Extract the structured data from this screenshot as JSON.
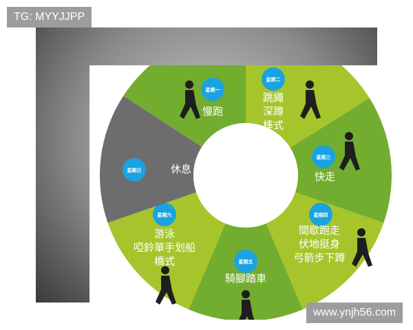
{
  "watermark_top": "TG: MYYJJPP",
  "watermark_bottom": "www.ynjh56.com",
  "colors": {
    "dark_green": "#73ad2f",
    "light_green": "#a6c52c",
    "rest_grey": "#6d6d6f",
    "badge_blue": "#1aa3e0",
    "silhouette": "#1e1e1e"
  },
  "days": [
    {
      "day": "星期一",
      "lines": [
        "慢跑"
      ],
      "color": "#73ad2f",
      "icon": "runner-icon"
    },
    {
      "day": "星期二",
      "lines": [
        "跳繩",
        "深蹲",
        "棒式"
      ],
      "color": "#a6c52c",
      "icon": "jump-rope-squat-icon"
    },
    {
      "day": "星期三",
      "lines": [
        "快走"
      ],
      "color": "#73ad2f",
      "icon": "walker-icon"
    },
    {
      "day": "星期四",
      "lines": [
        "間歇跑走",
        "伏地挺身",
        "弓箭步下蹲"
      ],
      "color": "#a6c52c",
      "icon": "pushup-lunge-icon"
    },
    {
      "day": "星期五",
      "lines": [
        "騎腳踏車"
      ],
      "color": "#73ad2f",
      "icon": "cyclist-icon"
    },
    {
      "day": "星期六",
      "lines": [
        "游泳",
        "啞鈴單手划船",
        "橋式"
      ],
      "color": "#a6c52c",
      "icon": "bridge-pose-icon"
    },
    {
      "day": "星期日",
      "lines": [
        "休息"
      ],
      "color": "#6d6d6f",
      "icon": "rest-icon"
    }
  ]
}
